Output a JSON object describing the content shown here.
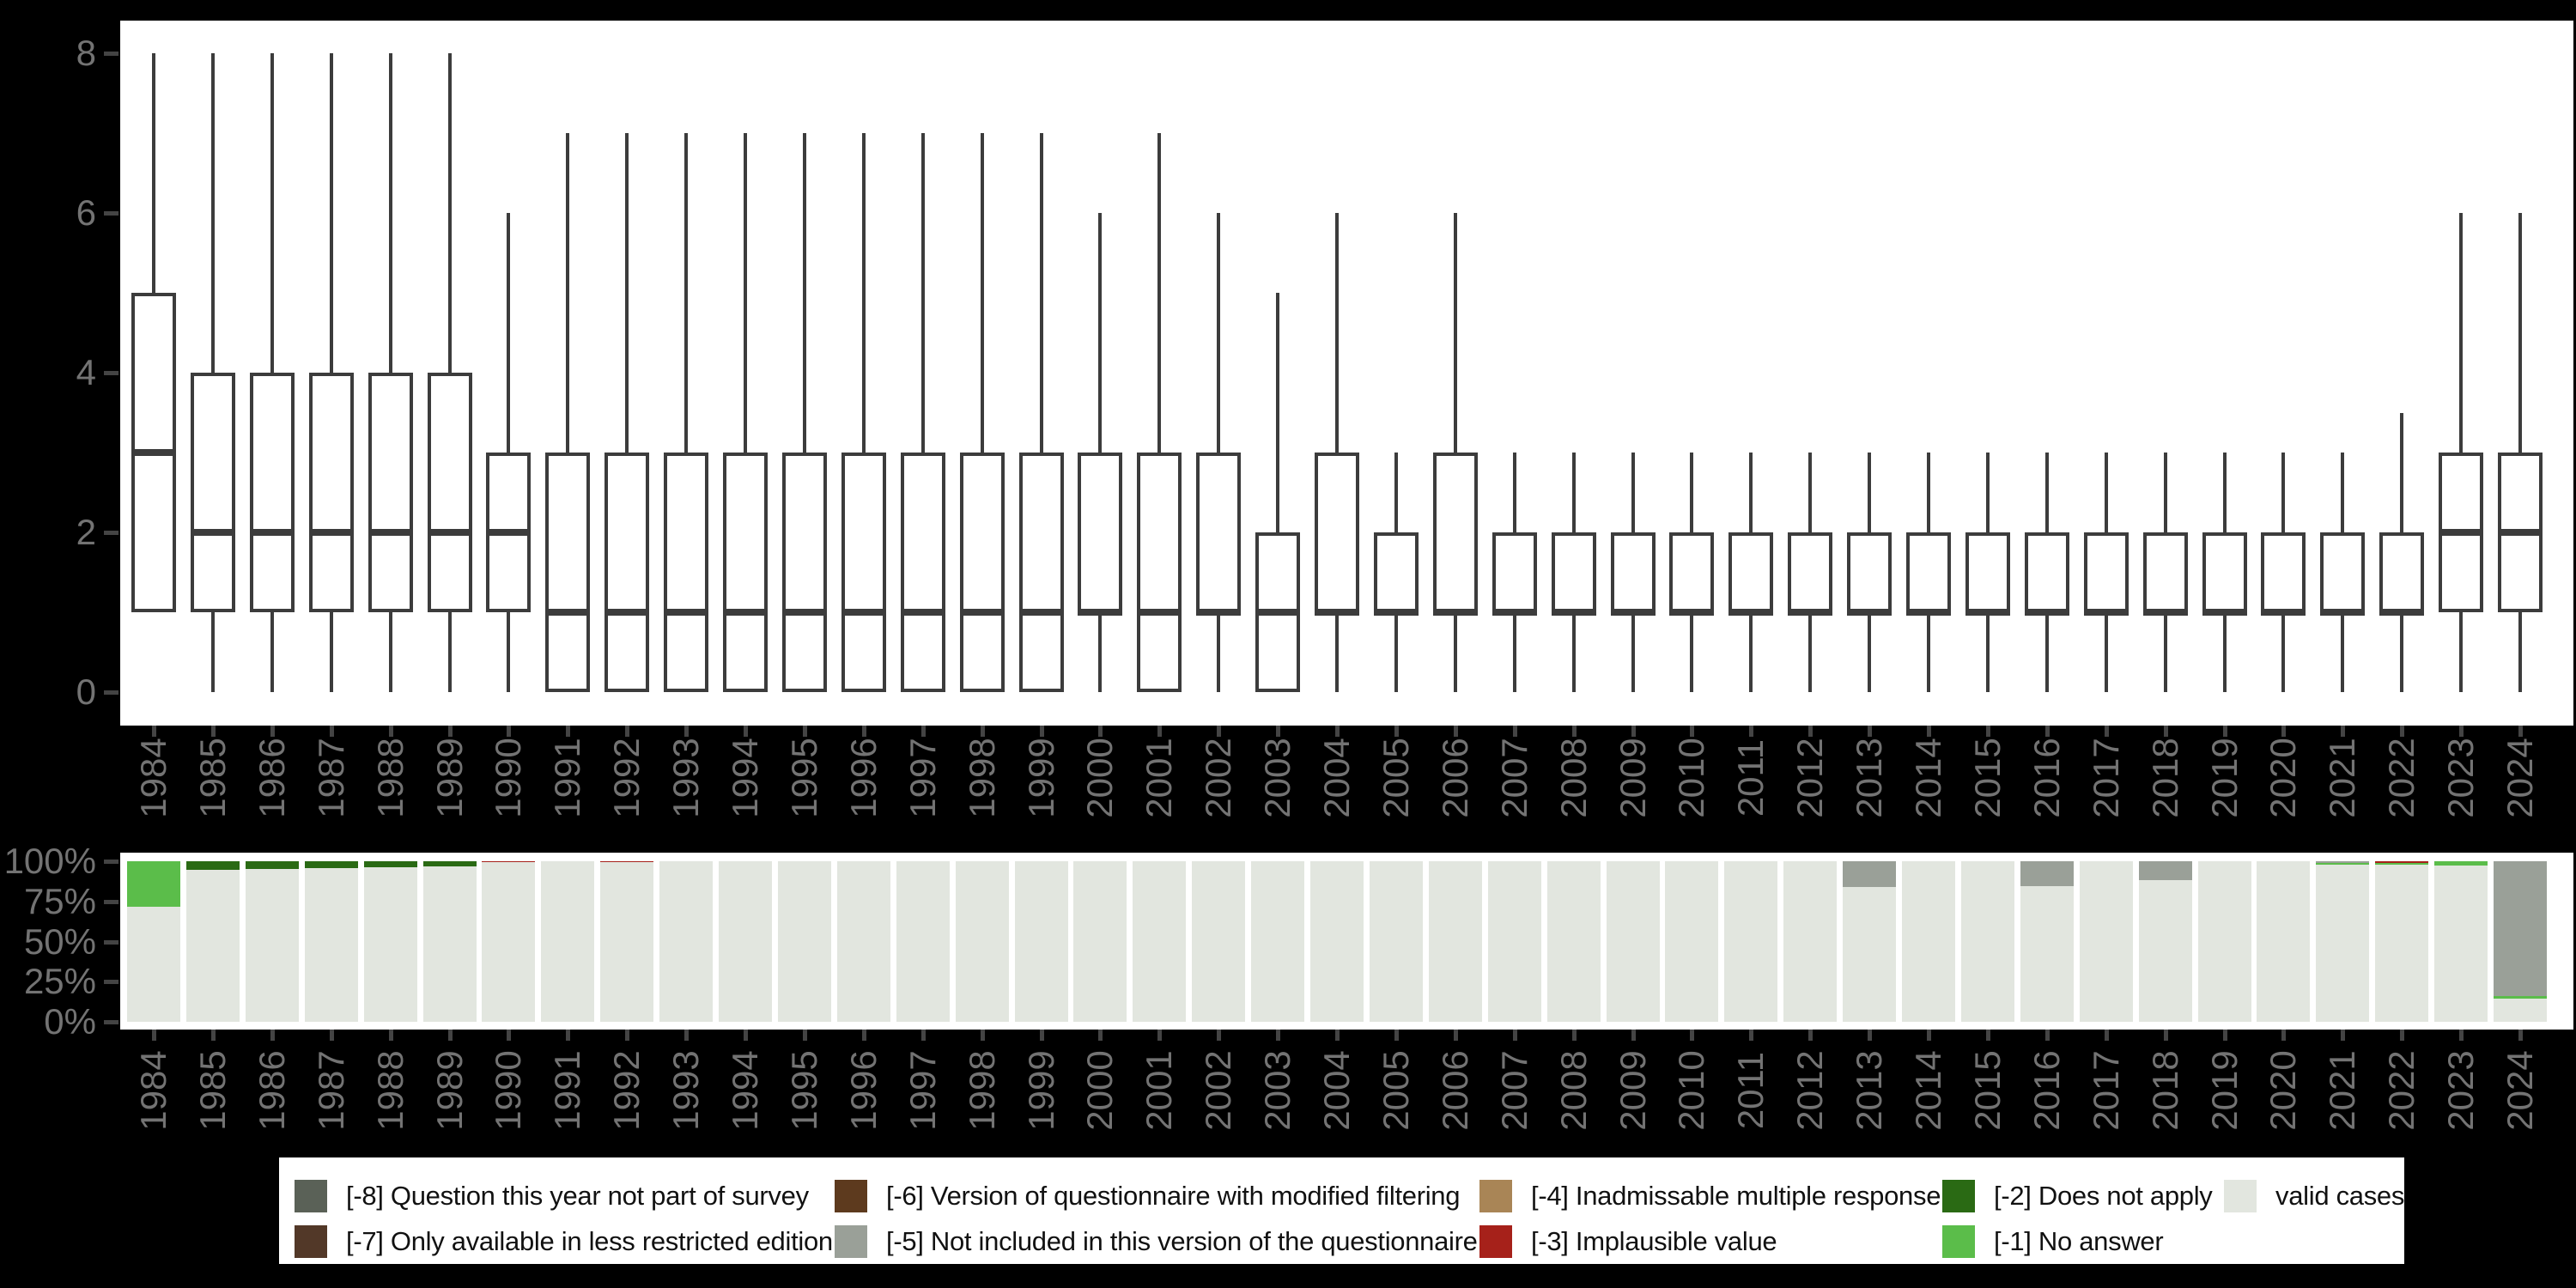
{
  "figure": {
    "background": "#000000",
    "panel_background": "#ffffff",
    "axis_text_color": "#737373",
    "tick_color": "#444444",
    "box_stroke_color": "#3C3C3C"
  },
  "axes": {
    "boxplot_ytick_labels": [
      "0",
      "2",
      "4",
      "6",
      "8"
    ],
    "boxplot_ytick_values": [
      0,
      2,
      4,
      6,
      8
    ],
    "bar_ytick_labels": [
      "0%",
      "25%",
      "50%",
      "75%",
      "100%"
    ],
    "bar_ytick_values": [
      0,
      25,
      50,
      75,
      100
    ]
  },
  "chart_data": [
    {
      "type": "boxplot",
      "title": "",
      "xlabel": "",
      "ylabel": "",
      "ylim": [
        -0.4,
        8.4
      ],
      "yticks": [
        0,
        2,
        4,
        6,
        8
      ],
      "grid": false,
      "x_categories": [
        "1984",
        "1985",
        "1986",
        "1987",
        "1988",
        "1989",
        "1990",
        "1991",
        "1992",
        "1993",
        "1994",
        "1995",
        "1996",
        "1997",
        "1998",
        "1999",
        "2000",
        "2001",
        "2002",
        "2003",
        "2004",
        "2005",
        "2006",
        "2007",
        "2008",
        "2009",
        "2010",
        "2011",
        "2012",
        "2013",
        "2014",
        "2015",
        "2016",
        "2017",
        "2018",
        "2019",
        "2020",
        "2021",
        "2022",
        "2023",
        "2024"
      ],
      "stats_format": [
        "whisker_low",
        "q1",
        "median",
        "q3",
        "whisker_high"
      ],
      "stats": [
        [
          1,
          1,
          3,
          5,
          8
        ],
        [
          0,
          1,
          2,
          4,
          8
        ],
        [
          0,
          1,
          2,
          4,
          8
        ],
        [
          0,
          1,
          2,
          4,
          8
        ],
        [
          0,
          1,
          2,
          4,
          8
        ],
        [
          0,
          1,
          2,
          4,
          8
        ],
        [
          0,
          1,
          2,
          3,
          6
        ],
        [
          0,
          0,
          1,
          3,
          7
        ],
        [
          0,
          0,
          1,
          3,
          7
        ],
        [
          0,
          0,
          1,
          3,
          7
        ],
        [
          0,
          0,
          1,
          3,
          7
        ],
        [
          0,
          0,
          1,
          3,
          7
        ],
        [
          0,
          0,
          1,
          3,
          7
        ],
        [
          0,
          0,
          1,
          3,
          7
        ],
        [
          0,
          0,
          1,
          3,
          7
        ],
        [
          0,
          0,
          1,
          3,
          7
        ],
        [
          0,
          1,
          1,
          3,
          6
        ],
        [
          0,
          0,
          1,
          3,
          7
        ],
        [
          0,
          1,
          1,
          3,
          6
        ],
        [
          0,
          0,
          1,
          2,
          5
        ],
        [
          0,
          1,
          1,
          3,
          6
        ],
        [
          0,
          1,
          1,
          2,
          3
        ],
        [
          0,
          1,
          1,
          3,
          6
        ],
        [
          0,
          1,
          1,
          2,
          3
        ],
        [
          0,
          1,
          1,
          2,
          3
        ],
        [
          0,
          1,
          1,
          2,
          3
        ],
        [
          0,
          1,
          1,
          2,
          3
        ],
        [
          0,
          1,
          1,
          2,
          3
        ],
        [
          0,
          1,
          1,
          2,
          3
        ],
        [
          0,
          1,
          1,
          2,
          3
        ],
        [
          0,
          1,
          1,
          2,
          3
        ],
        [
          0,
          1,
          1,
          2,
          3
        ],
        [
          0,
          1,
          1,
          2,
          3
        ],
        [
          0,
          1,
          1,
          2,
          3
        ],
        [
          0,
          1,
          1,
          2,
          3
        ],
        [
          0,
          1,
          1,
          2,
          3
        ],
        [
          0,
          1,
          1,
          2,
          3
        ],
        [
          0,
          1,
          1,
          2,
          3
        ],
        [
          0,
          1,
          1,
          2,
          3.5
        ],
        [
          0,
          1,
          2,
          3,
          6
        ],
        [
          0,
          1,
          2,
          3,
          6
        ]
      ]
    },
    {
      "type": "stacked_bar_percent",
      "title": "",
      "x_categories": [
        "1984",
        "1985",
        "1986",
        "1987",
        "1988",
        "1989",
        "1990",
        "1991",
        "1992",
        "1993",
        "1994",
        "1995",
        "1996",
        "1997",
        "1998",
        "1999",
        "2000",
        "2001",
        "2002",
        "2003",
        "2004",
        "2005",
        "2006",
        "2007",
        "2008",
        "2009",
        "2010",
        "2011",
        "2012",
        "2013",
        "2014",
        "2015",
        "2016",
        "2017",
        "2018",
        "2019",
        "2020",
        "2021",
        "2022",
        "2023",
        "2024"
      ],
      "ytick_labels": [
        "0%",
        "25%",
        "50%",
        "75%",
        "100%"
      ],
      "ylim": [
        0,
        100
      ],
      "stack_order_bottom_to_top": [
        "valid cases",
        "[-1] No answer",
        "[-2] Does not apply",
        "[-3] Implausible value",
        "[-4] Inadmissable multiple response",
        "[-5] Not included in this version of the questionnaire",
        "[-6] Version of questionnaire with modified filtering",
        "[-7] Only available in less restricted edition",
        "[-8] Question this year not part of survey"
      ],
      "series": [
        {
          "name": "valid cases",
          "color": "#E2E6DF",
          "values": [
            71.7,
            94.7,
            95.2,
            95.7,
            96.3,
            97,
            99.2,
            100,
            99.2,
            100,
            100,
            100,
            100,
            100,
            100,
            100,
            100,
            100,
            100,
            100,
            100,
            100,
            100,
            100,
            100,
            100,
            100,
            100,
            100,
            84,
            100,
            100,
            84.5,
            100,
            88,
            100,
            100,
            97.6,
            98,
            97.5,
            14.7
          ]
        },
        {
          "name": "[-1] No answer",
          "color": "#5BBD4A",
          "values": [
            28.3,
            0,
            0,
            0,
            0,
            0,
            0,
            0,
            0,
            0,
            0,
            0,
            0,
            0,
            0,
            0,
            0,
            0,
            0,
            0,
            0,
            0,
            0,
            0,
            0,
            0,
            0,
            0,
            0,
            0,
            0,
            0,
            0,
            0,
            0,
            0,
            0,
            1.2,
            1,
            2.5,
            1.3
          ]
        },
        {
          "name": "[-2] Does not apply",
          "color": "#2A6A14",
          "values": [
            0,
            5.3,
            4.8,
            4.3,
            3.7,
            3,
            0,
            0,
            0,
            0,
            0,
            0,
            0,
            0,
            0,
            0,
            0,
            0,
            0,
            0,
            0,
            0,
            0,
            0,
            0,
            0,
            0,
            0,
            0,
            0,
            0,
            0,
            0,
            0,
            0,
            0,
            0,
            0,
            0,
            0,
            0
          ]
        },
        {
          "name": "[-3] Implausible value",
          "color": "#A6211A",
          "values": [
            0,
            0,
            0,
            0,
            0,
            0,
            0.8,
            0,
            0.8,
            0,
            0,
            0,
            0,
            0,
            0,
            0,
            0,
            0,
            0,
            0,
            0,
            0,
            0,
            0,
            0,
            0,
            0,
            0,
            0,
            0,
            0,
            0,
            0,
            0,
            0,
            0,
            0,
            0,
            1,
            0,
            0
          ]
        },
        {
          "name": "[-4] Inadmissable multiple response",
          "color": "#A98556",
          "values": [
            0,
            0,
            0,
            0,
            0,
            0,
            0,
            0,
            0,
            0,
            0,
            0,
            0,
            0,
            0,
            0,
            0,
            0,
            0,
            0,
            0,
            0,
            0,
            0,
            0,
            0,
            0,
            0,
            0,
            0,
            0,
            0,
            0,
            0,
            0,
            0,
            0,
            0,
            0,
            0,
            0
          ]
        },
        {
          "name": "[-5] Not included in this version of the questionnaire",
          "color": "#9AA098",
          "values": [
            0,
            0,
            0,
            0,
            0,
            0,
            0,
            0,
            0,
            0,
            0,
            0,
            0,
            0,
            0,
            0,
            0,
            0,
            0,
            0,
            0,
            0,
            0,
            0,
            0,
            0,
            0,
            0,
            0,
            16,
            0,
            0,
            15.5,
            0,
            12,
            0,
            0,
            1.2,
            0,
            0,
            84
          ]
        },
        {
          "name": "[-6] Version of questionnaire with modified filtering",
          "color": "#5D3A1E",
          "values": [
            0,
            0,
            0,
            0,
            0,
            0,
            0,
            0,
            0,
            0,
            0,
            0,
            0,
            0,
            0,
            0,
            0,
            0,
            0,
            0,
            0,
            0,
            0,
            0,
            0,
            0,
            0,
            0,
            0,
            0,
            0,
            0,
            0,
            0,
            0,
            0,
            0,
            0,
            0,
            0,
            0
          ]
        },
        {
          "name": "[-7] Only available in less restricted edition",
          "color": "#523828",
          "values": [
            0,
            0,
            0,
            0,
            0,
            0,
            0,
            0,
            0,
            0,
            0,
            0,
            0,
            0,
            0,
            0,
            0,
            0,
            0,
            0,
            0,
            0,
            0,
            0,
            0,
            0,
            0,
            0,
            0,
            0,
            0,
            0,
            0,
            0,
            0,
            0,
            0,
            0,
            0,
            0,
            0
          ]
        },
        {
          "name": "[-8] Question this year not part of survey",
          "color": "#5A6157",
          "values": [
            0,
            0,
            0,
            0,
            0,
            0,
            0,
            0,
            0,
            0,
            0,
            0,
            0,
            0,
            0,
            0,
            0,
            0,
            0,
            0,
            0,
            0,
            0,
            0,
            0,
            0,
            0,
            0,
            0,
            0,
            0,
            0,
            0,
            0,
            0,
            0,
            0,
            0,
            0,
            0,
            0
          ]
        }
      ]
    }
  ],
  "legend": {
    "items": [
      {
        "label": "[-8] Question this year not part of survey",
        "color": "#5A6157"
      },
      {
        "label": "[-7] Only available in less restricted edition",
        "color": "#523828"
      },
      {
        "label": "[-6] Version of questionnaire with modified filtering",
        "color": "#5D3A1E"
      },
      {
        "label": "[-5] Not included in this version of the questionnaire",
        "color": "#9AA098"
      },
      {
        "label": "[-4] Inadmissable multiple response",
        "color": "#A98556"
      },
      {
        "label": "[-3] Implausible value",
        "color": "#A6211A"
      },
      {
        "label": "[-2] Does not apply",
        "color": "#2A6A14"
      },
      {
        "label": "[-1] No answer",
        "color": "#5BBD4A"
      },
      {
        "label": "valid cases",
        "color": "#E2E6DF"
      }
    ]
  }
}
